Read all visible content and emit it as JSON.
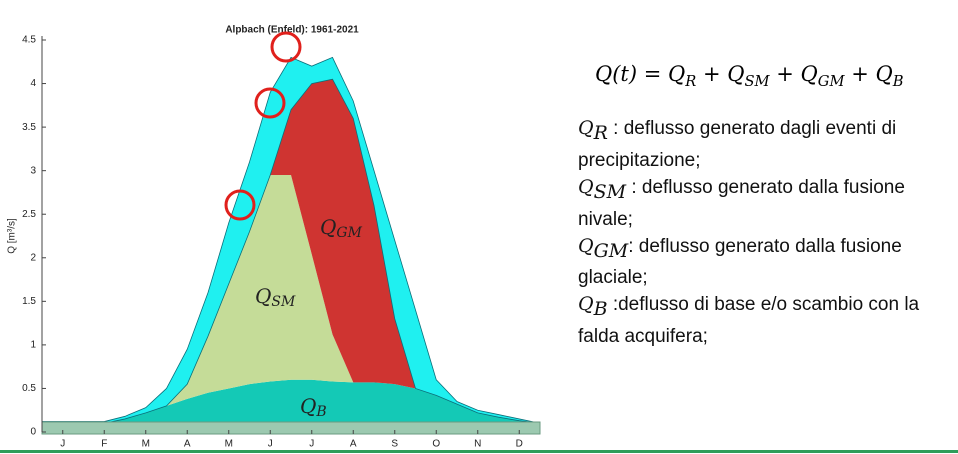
{
  "chart_data": {
    "type": "stacked-area",
    "title": "Alpbach (Enfeld): 1961-2021",
    "ylabel": "Q [m³/s]",
    "x": [
      0,
      0.5,
      1,
      1.5,
      2,
      2.5,
      3,
      3.5,
      4,
      4.5,
      5,
      5.5,
      6,
      6.5,
      7,
      7.5,
      8,
      8.5,
      9,
      9.5,
      10,
      10.5,
      11,
      11.5,
      12
    ],
    "xlim": [
      0,
      12
    ],
    "xticks": [
      {
        "value": 0.5,
        "label": "J"
      },
      {
        "value": 1.5,
        "label": "F"
      },
      {
        "value": 2.5,
        "label": "M"
      },
      {
        "value": 3.5,
        "label": "A"
      },
      {
        "value": 4.5,
        "label": "M"
      },
      {
        "value": 5.5,
        "label": "J"
      },
      {
        "value": 6.5,
        "label": "J"
      },
      {
        "value": 7.5,
        "label": "A"
      },
      {
        "value": 8.5,
        "label": "S"
      },
      {
        "value": 9.5,
        "label": "O"
      },
      {
        "value": 10.5,
        "label": "N"
      },
      {
        "value": 11.5,
        "label": "D"
      }
    ],
    "ylim": [
      0,
      4.5
    ],
    "yticks": [
      0,
      0.5,
      1,
      1.5,
      2,
      2.5,
      3,
      3.5,
      4,
      4.5
    ],
    "series": [
      {
        "color": "#14c9b6",
        "label": {
          "symbol": "Q",
          "sub": "B"
        },
        "values": [
          0.1,
          0.1,
          0.1,
          0.1,
          0.15,
          0.22,
          0.3,
          0.38,
          0.45,
          0.5,
          0.55,
          0.58,
          0.6,
          0.6,
          0.58,
          0.57,
          0.57,
          0.55,
          0.5,
          0.42,
          0.32,
          0.22,
          0.17,
          0.13,
          0.1
        ]
      },
      {
        "color": "#c5dc98",
        "label": {
          "symbol": "Q",
          "sub": "SM"
        },
        "values": [
          0,
          0,
          0,
          0,
          0,
          0,
          0,
          0.17,
          0.65,
          1.2,
          1.75,
          2.37,
          2.35,
          1.44,
          0.54,
          0,
          0,
          0,
          0,
          0,
          0,
          0,
          0,
          0,
          0
        ]
      },
      {
        "color": "#cf3431",
        "label": {
          "symbol": "Q",
          "sub": "GM"
        },
        "values": [
          0,
          0,
          0,
          0,
          0,
          0,
          0,
          0,
          0,
          0,
          0,
          0,
          0.75,
          1.96,
          2.93,
          3.03,
          2.03,
          0.75,
          0,
          0,
          0,
          0,
          0,
          0,
          0
        ]
      },
      {
        "color": "#1ff0f0",
        "values": [
          0.02,
          0.02,
          0.02,
          0.02,
          0.03,
          0.06,
          0.2,
          0.4,
          0.5,
          0.7,
          0.8,
          0.95,
          0.6,
          0.2,
          0.25,
          0.2,
          0.4,
          0.9,
          0.9,
          0.18,
          0.03,
          0.03,
          0.03,
          0.02,
          0
        ]
      }
    ]
  },
  "formula": [
    {
      "text": "Q(t) = Q",
      "sub": "R"
    },
    {
      "text": " + Q",
      "sub": "SM"
    },
    {
      "text": " + Q",
      "sub": "GM"
    },
    {
      "text": " + Q",
      "sub": "B"
    }
  ],
  "definitions": [
    {
      "symbol": "Q",
      "sub": "R",
      "text": " : deflusso generato dagli eventi di precipitazione;"
    },
    {
      "symbol": "Q",
      "sub": "SM",
      "text": " : deflusso generato dalla fusione nivale;"
    },
    {
      "symbol": "Q",
      "sub": "GM",
      "text": ": deflusso generato dalla fusione glaciale;"
    },
    {
      "symbol": "Q",
      "sub": "B",
      "text": " :deflusso di base e/o scambio con la falda acquifera;"
    }
  ]
}
